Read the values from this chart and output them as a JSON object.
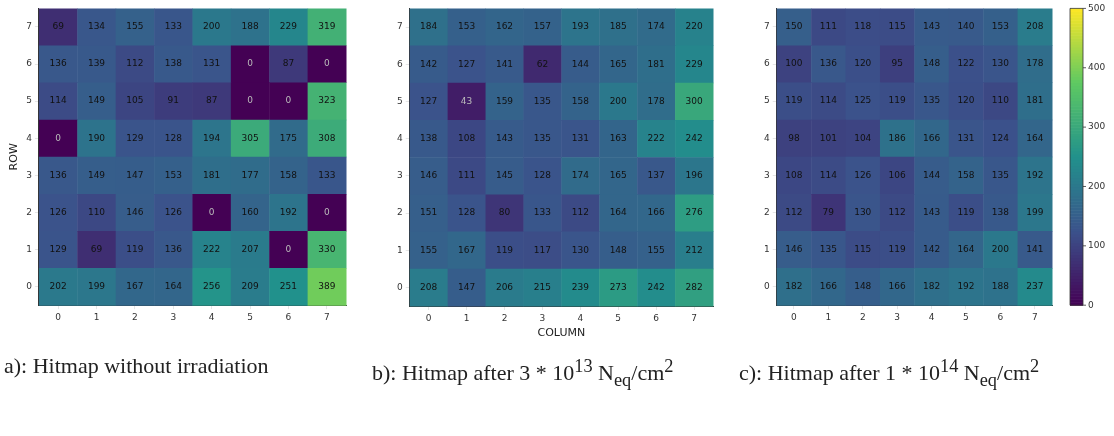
{
  "chart_data": [
    {
      "type": "heatmap",
      "ylabel": "ROW",
      "categories": [
        "0",
        "1",
        "2",
        "3",
        "4",
        "5",
        "6",
        "7"
      ],
      "y_categories": [
        "7",
        "6",
        "5",
        "4",
        "3",
        "2",
        "1",
        "0"
      ],
      "cells": [
        [
          69,
          134,
          155,
          133,
          200,
          188,
          229,
          319
        ],
        [
          136,
          139,
          112,
          138,
          131,
          0,
          87,
          0
        ],
        [
          114,
          149,
          105,
          91,
          87,
          0,
          0,
          323
        ],
        [
          0,
          190,
          129,
          128,
          194,
          305,
          175,
          308
        ],
        [
          136,
          149,
          147,
          153,
          181,
          177,
          158,
          133
        ],
        [
          126,
          110,
          146,
          126,
          0,
          160,
          192,
          0
        ],
        [
          129,
          69,
          119,
          136,
          222,
          207,
          0,
          330
        ],
        [
          202,
          199,
          167,
          164,
          256,
          209,
          251,
          389
        ]
      ],
      "data_labels": true,
      "annotations": [
        "a): Hitmap without irradiation"
      ]
    },
    {
      "type": "heatmap",
      "xlabel": "COLUMN",
      "categories": [
        "0",
        "1",
        "2",
        "3",
        "4",
        "5",
        "6",
        "7"
      ],
      "y_categories": [
        "7",
        "6",
        "5",
        "4",
        "3",
        "2",
        "1",
        "0"
      ],
      "cells": [
        [
          184,
          153,
          162,
          157,
          193,
          185,
          174,
          220
        ],
        [
          142,
          127,
          141,
          62,
          144,
          165,
          181,
          229
        ],
        [
          127,
          43,
          159,
          135,
          158,
          200,
          178,
          300
        ],
        [
          138,
          108,
          143,
          135,
          131,
          163,
          222,
          242
        ],
        [
          146,
          111,
          145,
          128,
          174,
          165,
          137,
          196
        ],
        [
          151,
          128,
          80,
          133,
          112,
          164,
          166,
          276
        ],
        [
          155,
          167,
          119,
          117,
          130,
          148,
          155,
          212
        ],
        [
          208,
          147,
          206,
          215,
          239,
          273,
          242,
          282
        ]
      ],
      "data_labels": true,
      "annotations": [
        "b): Hitmap after 3 * 10$^{13}$ N$_{eq}$/cm$^{2}$"
      ]
    },
    {
      "type": "heatmap",
      "categories": [
        "0",
        "1",
        "2",
        "3",
        "4",
        "5",
        "6",
        "7"
      ],
      "y_categories": [
        "7",
        "6",
        "5",
        "4",
        "3",
        "2",
        "1",
        "0"
      ],
      "cells": [
        [
          150,
          111,
          118,
          115,
          143,
          140,
          153,
          208
        ],
        [
          100,
          136,
          120,
          95,
          148,
          122,
          130,
          178
        ],
        [
          119,
          114,
          125,
          119,
          135,
          120,
          110,
          181
        ],
        [
          98,
          101,
          104,
          186,
          166,
          131,
          124,
          164
        ],
        [
          108,
          114,
          126,
          106,
          144,
          158,
          135,
          192
        ],
        [
          112,
          79,
          130,
          112,
          143,
          119,
          138,
          199
        ],
        [
          146,
          135,
          115,
          119,
          142,
          164,
          200,
          141
        ],
        [
          182,
          166,
          148,
          166,
          182,
          192,
          188,
          237
        ]
      ],
      "data_labels": true,
      "clim": [
        0,
        500
      ],
      "cticks": [
        0,
        100,
        200,
        300,
        400,
        500
      ],
      "annotations": [
        "c): Hitmap after 1 * 10$^{14}$ N$_{eq}$/cm$^{2}$"
      ]
    }
  ]
}
